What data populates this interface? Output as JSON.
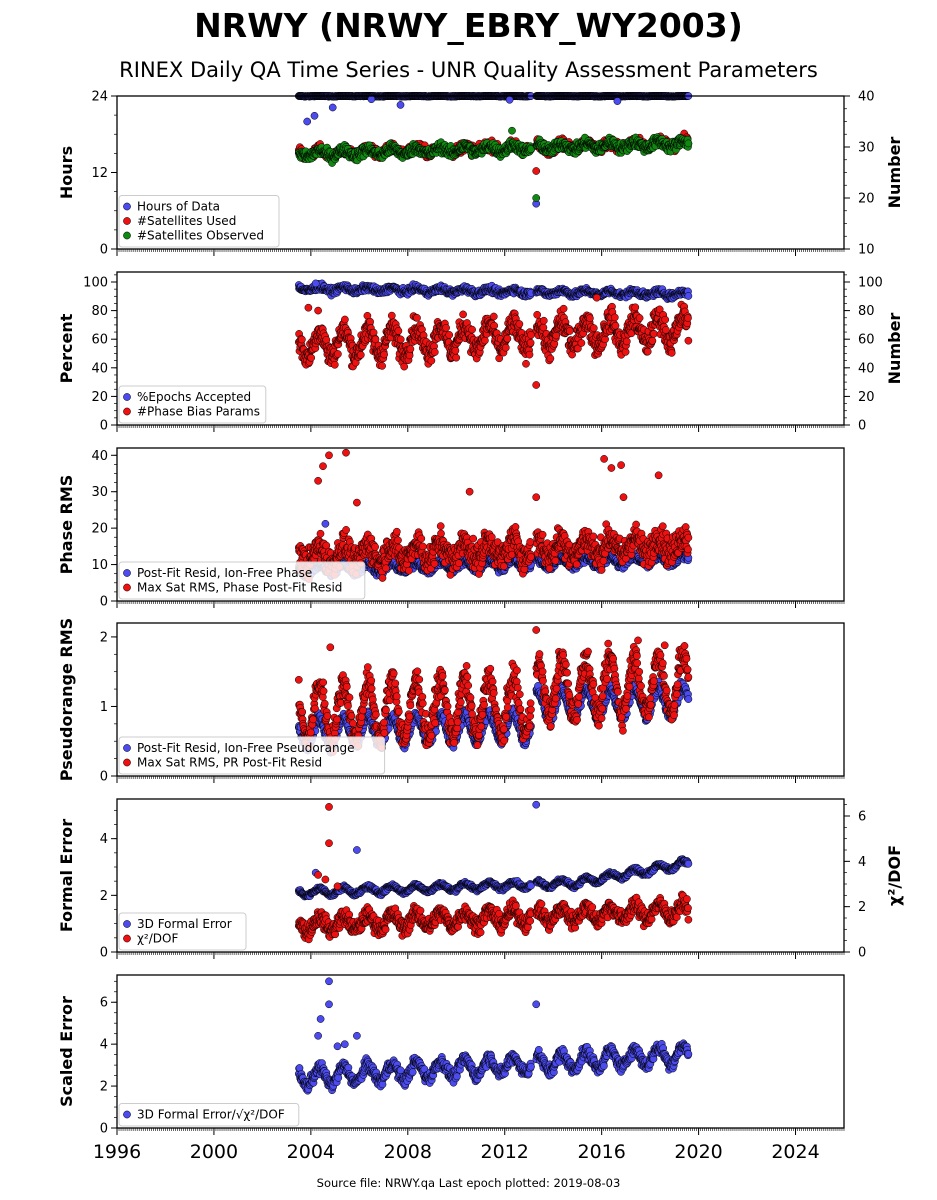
{
  "title": "NRWY (NRWY_EBRY_WY2003)",
  "subtitle": "RINEX Daily QA Time Series - UNR Quality Assessment Parameters",
  "footer": {
    "source_label": "Source file: NRWY.qa",
    "last_epoch_label": "Last epoch plotted: 2019-08-03"
  },
  "colors": {
    "blue": "#4b4bf0",
    "red": "#ee1111",
    "green": "#118811",
    "marker_edge": "#000000"
  },
  "chart_data": [
    {
      "type": "scatter",
      "name": "hours-panel",
      "ylabel": "Hours",
      "yticks": [
        "0",
        "12",
        "24"
      ],
      "ylim": [
        0,
        24
      ],
      "y2label": "Number",
      "y2ticks": [
        "10",
        "20",
        "30",
        "40"
      ],
      "y2lim": [
        10,
        40
      ],
      "xlim": [
        1996,
        2026
      ],
      "legend_position": "lower-left",
      "series": [
        {
          "name": "Hours of Data",
          "color": "blue",
          "axis": "left",
          "x_range": [
            2003.5,
            2019.59
          ],
          "base": 24.0,
          "trend": 0,
          "seasonal": 0.05,
          "noise": 0.05,
          "clip_max": 24,
          "outliers": [
            [
              2003.85,
              20.0
            ],
            [
              2004.15,
              20.9
            ],
            [
              2004.9,
              22.2
            ],
            [
              2007.7,
              22.6
            ],
            [
              2013.3,
              7.1
            ],
            [
              2016.65,
              23.2
            ],
            [
              2012.2,
              23.4
            ],
            [
              2006.5,
              23.5
            ]
          ]
        },
        {
          "name": "#Satellites Used",
          "color": "red",
          "axis": "right",
          "x_range": [
            2003.5,
            2019.59
          ],
          "base": 28.8,
          "trend": 0.12,
          "seasonal": 0.6,
          "noise": 0.7,
          "outliers": [
            [
              2013.3,
              25.3
            ]
          ]
        },
        {
          "name": "#Satellites Observed",
          "color": "green",
          "axis": "right",
          "x_range": [
            2003.5,
            2019.59
          ],
          "base": 28.6,
          "trend": 0.13,
          "seasonal": 0.6,
          "noise": 0.7,
          "outliers": [
            [
              2013.3,
              20.0
            ],
            [
              2012.3,
              33.2
            ]
          ]
        }
      ]
    },
    {
      "type": "scatter",
      "name": "percent-panel",
      "ylabel": "Percent",
      "yticks": [
        "0",
        "20",
        "40",
        "60",
        "80",
        "100"
      ],
      "ylim": [
        0,
        107
      ],
      "y2label": "Number",
      "y2ticks": [
        "0",
        "20",
        "40",
        "60",
        "80",
        "100"
      ],
      "y2lim": [
        0,
        107
      ],
      "xlim": [
        1996,
        2026
      ],
      "legend_position": "lower-left",
      "series": [
        {
          "name": "%Epochs Accepted",
          "color": "blue",
          "axis": "left",
          "x_range": [
            2003.5,
            2019.59
          ],
          "base": 95.5,
          "trend": -0.25,
          "seasonal": 1.5,
          "noise": 1.5,
          "outliers": [
            [
              2004.2,
              99.0
            ]
          ]
        },
        {
          "name": "#Phase Bias Params",
          "color": "red",
          "axis": "left",
          "x_range": [
            2003.5,
            2019.59
          ],
          "base": 56,
          "trend": 0.7,
          "seasonal": 9,
          "noise": 6,
          "outliers": [
            [
              2013.3,
              28.0
            ],
            [
              2003.9,
              82.0
            ],
            [
              2004.3,
              80.0
            ],
            [
              2015.8,
              89.0
            ]
          ]
        }
      ]
    },
    {
      "type": "scatter",
      "name": "phase-rms-panel",
      "ylabel": "Phase RMS",
      "yticks": [
        "0",
        "10",
        "20",
        "30",
        "40"
      ],
      "ylim": [
        0,
        42
      ],
      "xlim": [
        1996,
        2026
      ],
      "legend_position": "lower-left",
      "series": [
        {
          "name": "Post-Fit Resid, Ion-Free Phase",
          "color": "blue",
          "axis": "left",
          "x_range": [
            2003.5,
            2019.59
          ],
          "base": 8.5,
          "trend": 0.18,
          "seasonal": 1.2,
          "noise": 0.7,
          "outliers": [
            [
              2004.6,
              21.2
            ]
          ]
        },
        {
          "name": "Max Sat RMS, Phase Post-Fit Resid",
          "color": "red",
          "axis": "left",
          "x_range": [
            2003.5,
            2019.59
          ],
          "base": 12.5,
          "trend": 0.2,
          "seasonal": 2.5,
          "noise": 2.8,
          "outliers": [
            [
              2004.75,
              40.0
            ],
            [
              2005.45,
              40.7
            ],
            [
              2004.3,
              33.0
            ],
            [
              2004.5,
              37.0
            ],
            [
              2010.55,
              30.0
            ],
            [
              2016.1,
              39.0
            ],
            [
              2016.8,
              37.3
            ],
            [
              2016.4,
              36.5
            ],
            [
              2018.35,
              34.5
            ],
            [
              2016.9,
              28.5
            ],
            [
              2013.3,
              28.5
            ],
            [
              2005.9,
              27.0
            ]
          ]
        }
      ]
    },
    {
      "type": "scatter",
      "name": "pseudorange-rms-panel",
      "ylabel": "Pseudorange RMS",
      "yticks": [
        "0",
        "1",
        "2"
      ],
      "ylim": [
        0,
        2.2
      ],
      "xlim": [
        1996,
        2026
      ],
      "legend_position": "lower-left",
      "series": [
        {
          "name": "Post-Fit Resid, Ion-Free Pseudorange",
          "color": "blue",
          "axis": "left",
          "x_range": [
            2003.5,
            2019.59
          ],
          "base": 0.62,
          "trend": 0.01,
          "seasonal": 0.2,
          "noise": 0.06,
          "jump": {
            "at": 2013.3,
            "amount": 0.3
          },
          "outliers": []
        },
        {
          "name": "Max Sat RMS, PR Post-Fit Resid",
          "color": "red",
          "axis": "left",
          "x_range": [
            2003.5,
            2019.59
          ],
          "base": 0.92,
          "trend": 0.01,
          "seasonal": 0.4,
          "noise": 0.14,
          "jump": {
            "at": 2013.3,
            "amount": 0.25
          },
          "outliers": [
            [
              2004.8,
              1.85
            ],
            [
              2013.3,
              2.1
            ],
            [
              2017.5,
              1.95
            ],
            [
              2018.6,
              1.88
            ]
          ]
        }
      ]
    },
    {
      "type": "scatter",
      "name": "formal-error-panel",
      "ylabel": "Formal Error",
      "yticks": [
        "0",
        "2",
        "4"
      ],
      "ylim": [
        0,
        5.4
      ],
      "y2label": "χ²/DOF",
      "y2ticks": [
        "0",
        "2",
        "4",
        "6"
      ],
      "y2lim": [
        0,
        6.75
      ],
      "xlim": [
        1996,
        2026
      ],
      "legend_position": "lower-left",
      "series": [
        {
          "name": "3D Formal Error",
          "color": "blue",
          "axis": "left",
          "x_range": [
            2003.5,
            2019.59
          ],
          "base": 2.1,
          "trend": 0.03,
          "seasonal": 0.12,
          "noise": 0.05,
          "ramp": {
            "from": 2015.0,
            "rate": 0.12
          },
          "outliers": [
            [
              2013.3,
              5.2
            ],
            [
              2005.9,
              3.6
            ],
            [
              2004.2,
              2.8
            ]
          ]
        },
        {
          "name": "χ²/DOF",
          "color": "red",
          "axis": "right",
          "x_range": [
            2003.5,
            2019.59
          ],
          "base": 1.2,
          "trend": 0.04,
          "seasonal": 0.3,
          "noise": 0.25,
          "outliers": [
            [
              2004.75,
              6.4
            ],
            [
              2004.75,
              4.8
            ],
            [
              2004.3,
              3.4
            ],
            [
              2004.6,
              3.2
            ],
            [
              2005.1,
              2.9
            ]
          ]
        }
      ]
    },
    {
      "type": "scatter",
      "name": "scaled-error-panel",
      "ylabel": "Scaled Error",
      "yticks": [
        "0",
        "2",
        "4",
        "6"
      ],
      "ylim": [
        0,
        7.3
      ],
      "xlim": [
        1996,
        2026
      ],
      "xticks": [
        "1996",
        "2000",
        "2004",
        "2008",
        "2012",
        "2016",
        "2020",
        "2024"
      ],
      "legend_position": "lower-left",
      "series": [
        {
          "name": "3D Formal Error/√χ²/DOF",
          "color": "blue",
          "axis": "left",
          "x_range": [
            2003.5,
            2019.59
          ],
          "base": 2.4,
          "trend": 0.07,
          "seasonal": 0.4,
          "noise": 0.2,
          "outliers": [
            [
              2004.75,
              7.0
            ],
            [
              2004.75,
              5.9
            ],
            [
              2004.4,
              5.2
            ],
            [
              2004.3,
              4.4
            ],
            [
              2005.1,
              3.9
            ],
            [
              2005.4,
              4.0
            ],
            [
              2005.9,
              4.4
            ],
            [
              2013.3,
              5.9
            ]
          ]
        }
      ]
    }
  ]
}
